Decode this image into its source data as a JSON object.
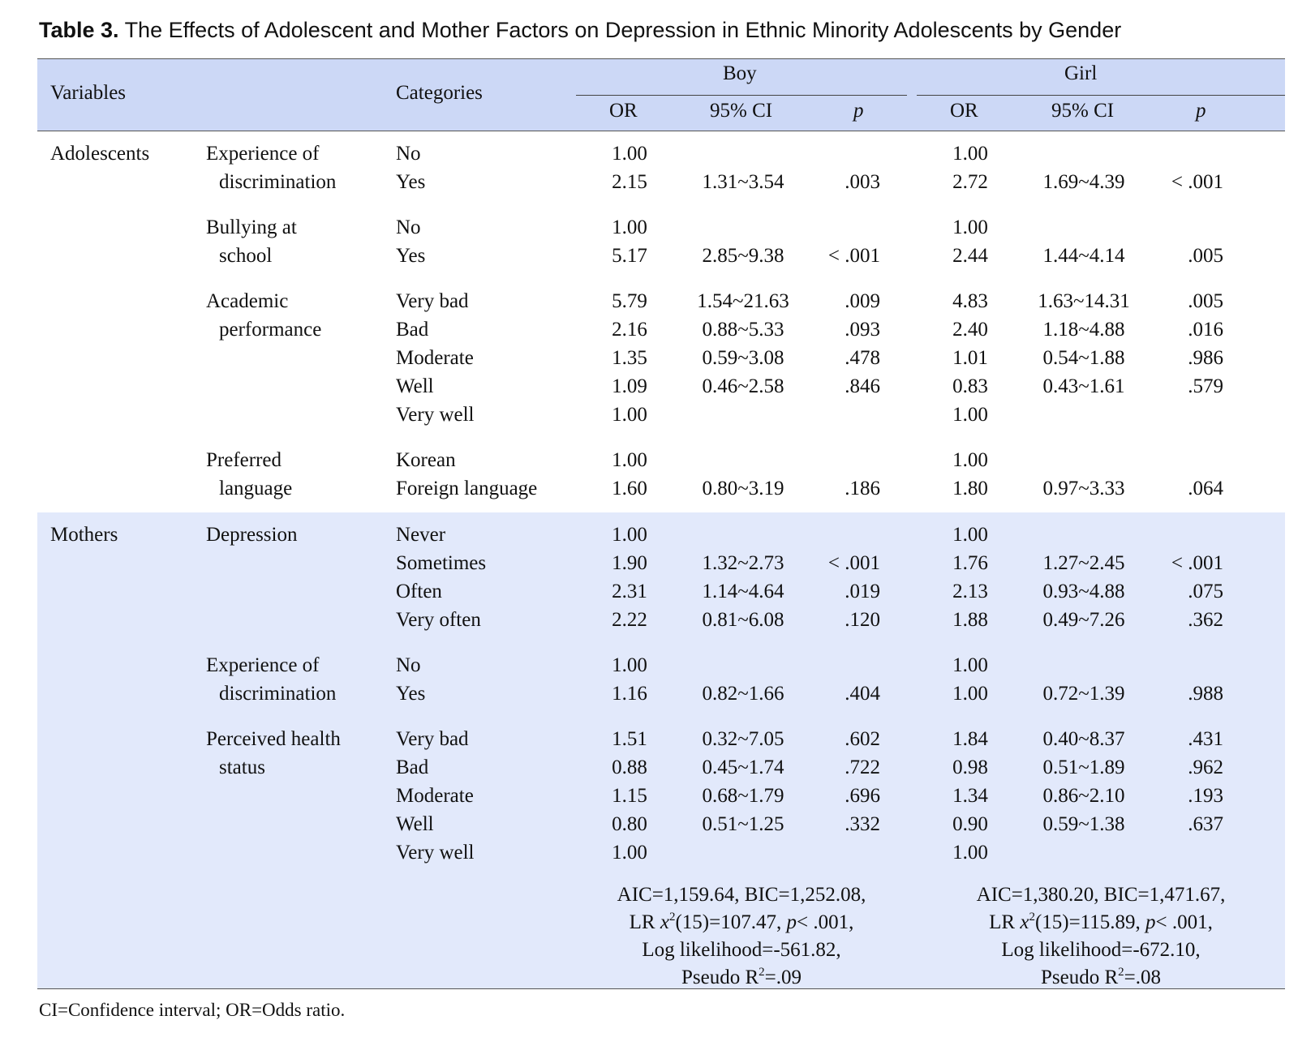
{
  "caption": {
    "label": "Table 3.",
    "title": "The Effects of Adolescent and Mother Factors on Depression in Ethnic Minority Adolescents by Gender"
  },
  "header": {
    "variables": "Variables",
    "categories": "Categories",
    "boy": "Boy",
    "girl": "Girl",
    "or": "OR",
    "ci": "95% CI",
    "p": "p"
  },
  "sections": [
    {
      "group": "Adolescents",
      "blocks": [
        {
          "factor_line1": "Experience of",
          "factor_line2": "discrimination",
          "rows": [
            {
              "cat": "No",
              "b_or": "1.00",
              "b_ci": "",
              "b_p": "",
              "g_or": "1.00",
              "g_ci": "",
              "g_p": ""
            },
            {
              "cat": "Yes",
              "b_or": "2.15",
              "b_ci": "1.31~3.54",
              "b_p": ".003",
              "g_or": "2.72",
              "g_ci": "1.69~4.39",
              "g_p": "< .001"
            }
          ]
        },
        {
          "factor_line1": "Bullying at",
          "factor_line2": "school",
          "rows": [
            {
              "cat": "No",
              "b_or": "1.00",
              "b_ci": "",
              "b_p": "",
              "g_or": "1.00",
              "g_ci": "",
              "g_p": ""
            },
            {
              "cat": "Yes",
              "b_or": "5.17",
              "b_ci": "2.85~9.38",
              "b_p": "< .001",
              "g_or": "2.44",
              "g_ci": "1.44~4.14",
              "g_p": ".005"
            }
          ]
        },
        {
          "factor_line1": "Academic",
          "factor_line2": "performance",
          "rows": [
            {
              "cat": "Very bad",
              "b_or": "5.79",
              "b_ci": "1.54~21.63",
              "b_p": ".009",
              "g_or": "4.83",
              "g_ci": "1.63~14.31",
              "g_p": ".005"
            },
            {
              "cat": "Bad",
              "b_or": "2.16",
              "b_ci": "0.88~5.33",
              "b_p": ".093",
              "g_or": "2.40",
              "g_ci": "1.18~4.88",
              "g_p": ".016"
            },
            {
              "cat": "Moderate",
              "b_or": "1.35",
              "b_ci": "0.59~3.08",
              "b_p": ".478",
              "g_or": "1.01",
              "g_ci": "0.54~1.88",
              "g_p": ".986"
            },
            {
              "cat": "Well",
              "b_or": "1.09",
              "b_ci": "0.46~2.58",
              "b_p": ".846",
              "g_or": "0.83",
              "g_ci": "0.43~1.61",
              "g_p": ".579"
            },
            {
              "cat": "Very well",
              "b_or": "1.00",
              "b_ci": "",
              "b_p": "",
              "g_or": "1.00",
              "g_ci": "",
              "g_p": ""
            }
          ]
        },
        {
          "factor_line1": "Preferred",
          "factor_line2": "language",
          "rows": [
            {
              "cat": "Korean",
              "b_or": "1.00",
              "b_ci": "",
              "b_p": "",
              "g_or": "1.00",
              "g_ci": "",
              "g_p": ""
            },
            {
              "cat": "Foreign language",
              "b_or": "1.60",
              "b_ci": "0.80~3.19",
              "b_p": ".186",
              "g_or": "1.80",
              "g_ci": "0.97~3.33",
              "g_p": ".064"
            }
          ]
        }
      ]
    },
    {
      "group": "Mothers",
      "blocks": [
        {
          "factor_line1": "Depression",
          "factor_line2": "",
          "rows": [
            {
              "cat": "Never",
              "b_or": "1.00",
              "b_ci": "",
              "b_p": "",
              "g_or": "1.00",
              "g_ci": "",
              "g_p": ""
            },
            {
              "cat": "Sometimes",
              "b_or": "1.90",
              "b_ci": "1.32~2.73",
              "b_p": "< .001",
              "g_or": "1.76",
              "g_ci": "1.27~2.45",
              "g_p": "< .001"
            },
            {
              "cat": "Often",
              "b_or": "2.31",
              "b_ci": "1.14~4.64",
              "b_p": ".019",
              "g_or": "2.13",
              "g_ci": "0.93~4.88",
              "g_p": ".075"
            },
            {
              "cat": "Very often",
              "b_or": "2.22",
              "b_ci": "0.81~6.08",
              "b_p": ".120",
              "g_or": "1.88",
              "g_ci": "0.49~7.26",
              "g_p": ".362"
            }
          ]
        },
        {
          "factor_line1": "Experience of",
          "factor_line2": "discrimination",
          "rows": [
            {
              "cat": "No",
              "b_or": "1.00",
              "b_ci": "",
              "b_p": "",
              "g_or": "1.00",
              "g_ci": "",
              "g_p": ""
            },
            {
              "cat": "Yes",
              "b_or": "1.16",
              "b_ci": "0.82~1.66",
              "b_p": ".404",
              "g_or": "1.00",
              "g_ci": "0.72~1.39",
              "g_p": ".988"
            }
          ]
        },
        {
          "factor_line1": "Perceived health",
          "factor_line2": "status",
          "rows": [
            {
              "cat": "Very bad",
              "b_or": "1.51",
              "b_ci": "0.32~7.05",
              "b_p": ".602",
              "g_or": "1.84",
              "g_ci": "0.40~8.37",
              "g_p": ".431"
            },
            {
              "cat": "Bad",
              "b_or": "0.88",
              "b_ci": "0.45~1.74",
              "b_p": ".722",
              "g_or": "0.98",
              "g_ci": "0.51~1.89",
              "g_p": ".962"
            },
            {
              "cat": "Moderate",
              "b_or": "1.15",
              "b_ci": "0.68~1.79",
              "b_p": ".696",
              "g_or": "1.34",
              "g_ci": "0.86~2.10",
              "g_p": ".193"
            },
            {
              "cat": "Well",
              "b_or": "0.80",
              "b_ci": "0.51~1.25",
              "b_p": ".332",
              "g_or": "0.90",
              "g_ci": "0.59~1.38",
              "g_p": ".637"
            },
            {
              "cat": "Very well",
              "b_or": "1.00",
              "b_ci": "",
              "b_p": "",
              "g_or": "1.00",
              "g_ci": "",
              "g_p": ""
            }
          ]
        }
      ]
    }
  ],
  "model_fit": {
    "boy": {
      "line1": "AIC=1,159.64,  BIC=1,252.08,",
      "lr_prefix": "LR ",
      "lr_x": "x",
      "lr_sup": "2",
      "lr_rest": "(15)=107.47,  ",
      "lr_p": "p",
      "lr_tail": "< .001,",
      "line3": "Log likelihood=-561.82,",
      "pseudo_prefix": "Pseudo R",
      "pseudo_sup": "2",
      "pseudo_tail": "=.09"
    },
    "girl": {
      "line1": "AIC=1,380.20,  BIC=1,471.67,",
      "lr_prefix": "LR ",
      "lr_x": "x",
      "lr_sup": "2",
      "lr_rest": "(15)=115.89,  ",
      "lr_p": "p",
      "lr_tail": "< .001,",
      "line3": "Log likelihood=-672.10,",
      "pseudo_prefix": "Pseudo R",
      "pseudo_sup": "2",
      "pseudo_tail": "=.08"
    }
  },
  "footnote": "CI=Confidence interval; OR=Odds ratio.",
  "colors": {
    "header_bg": "#ccd8f6",
    "mothers_bg": "#e2e9fb"
  }
}
